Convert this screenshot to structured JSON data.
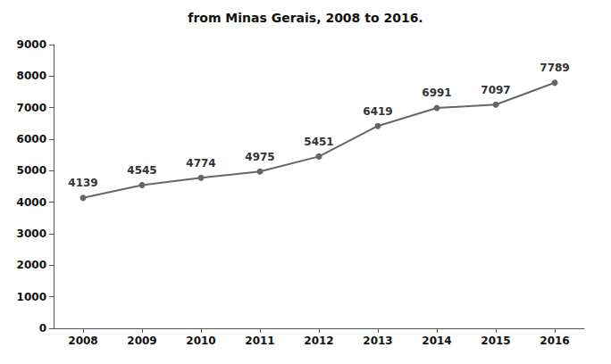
{
  "chart_data": {
    "type": "line",
    "title": "from Minas Gerais, 2008 to 2016.",
    "x": [
      2008,
      2009,
      2010,
      2011,
      2012,
      2013,
      2014,
      2015,
      2016
    ],
    "values": [
      4139,
      4545,
      4774,
      4975,
      5451,
      6419,
      6991,
      7097,
      7789
    ],
    "xlim": [
      2007.5,
      2016.5
    ],
    "xticks": [
      2008,
      2009,
      2010,
      2011,
      2012,
      2013,
      2014,
      2015,
      2016
    ],
    "ylim": [
      0,
      9000
    ],
    "yticks": [
      0,
      1000,
      2000,
      3000,
      4000,
      5000,
      6000,
      7000,
      8000,
      9000
    ],
    "color": "#666666",
    "marker": "circle",
    "data_labels": true,
    "grid": false
  }
}
